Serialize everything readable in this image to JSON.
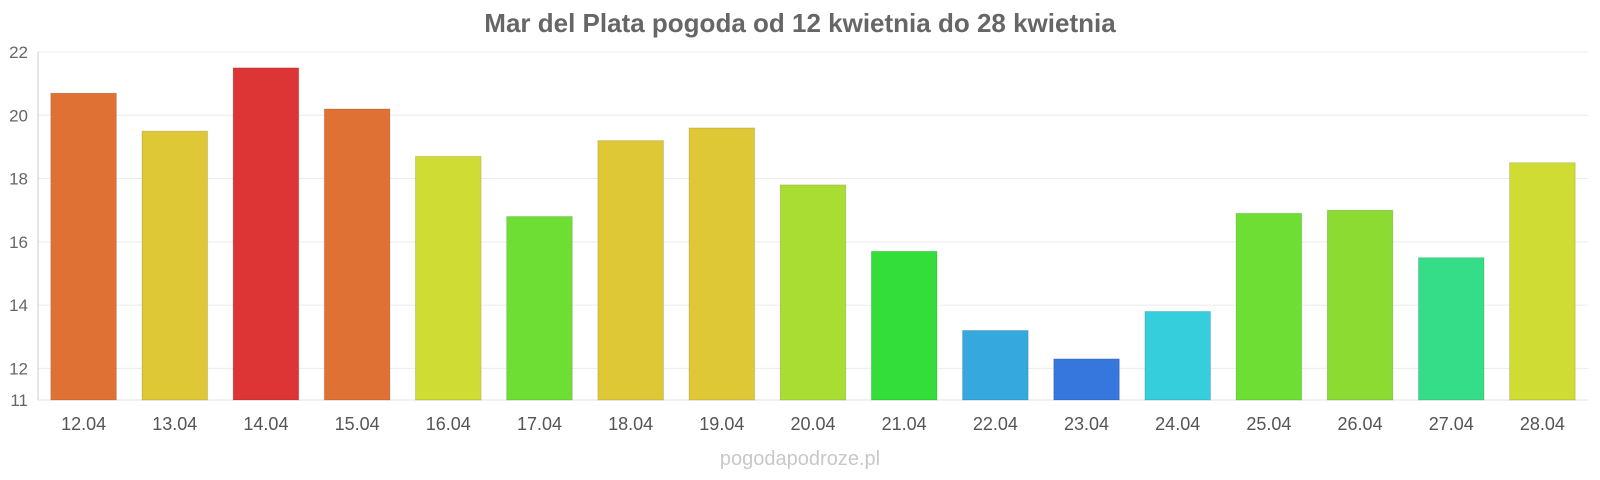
{
  "chart_data": {
    "type": "bar",
    "title": "Mar del Plata pogoda od 12 kwietnia do 28 kwietnia",
    "xlabel": "",
    "ylabel": "",
    "categories": [
      "12.04",
      "13.04",
      "14.04",
      "15.04",
      "16.04",
      "17.04",
      "18.04",
      "19.04",
      "20.04",
      "21.04",
      "22.04",
      "23.04",
      "24.04",
      "25.04",
      "26.04",
      "27.04",
      "28.04"
    ],
    "values": [
      20.7,
      19.5,
      21.5,
      20.2,
      18.7,
      16.8,
      19.2,
      19.6,
      17.8,
      15.7,
      13.2,
      12.3,
      13.8,
      16.9,
      17.0,
      15.5,
      18.5
    ],
    "colors": [
      "#e07135",
      "#dfc836",
      "#dd3535",
      "#e07135",
      "#cfdc33",
      "#6ede35",
      "#dfc836",
      "#dfc836",
      "#aadd33",
      "#33dd3a",
      "#35a8dd",
      "#3577dd",
      "#35cedd",
      "#6ede35",
      "#8bdb33",
      "#35dd88",
      "#cfdc33"
    ],
    "yticks": [
      11,
      12,
      14,
      16,
      18,
      20,
      22
    ],
    "ylim": [
      11,
      22
    ],
    "grid": true
  },
  "watermark": "pogodapodroze.pl"
}
